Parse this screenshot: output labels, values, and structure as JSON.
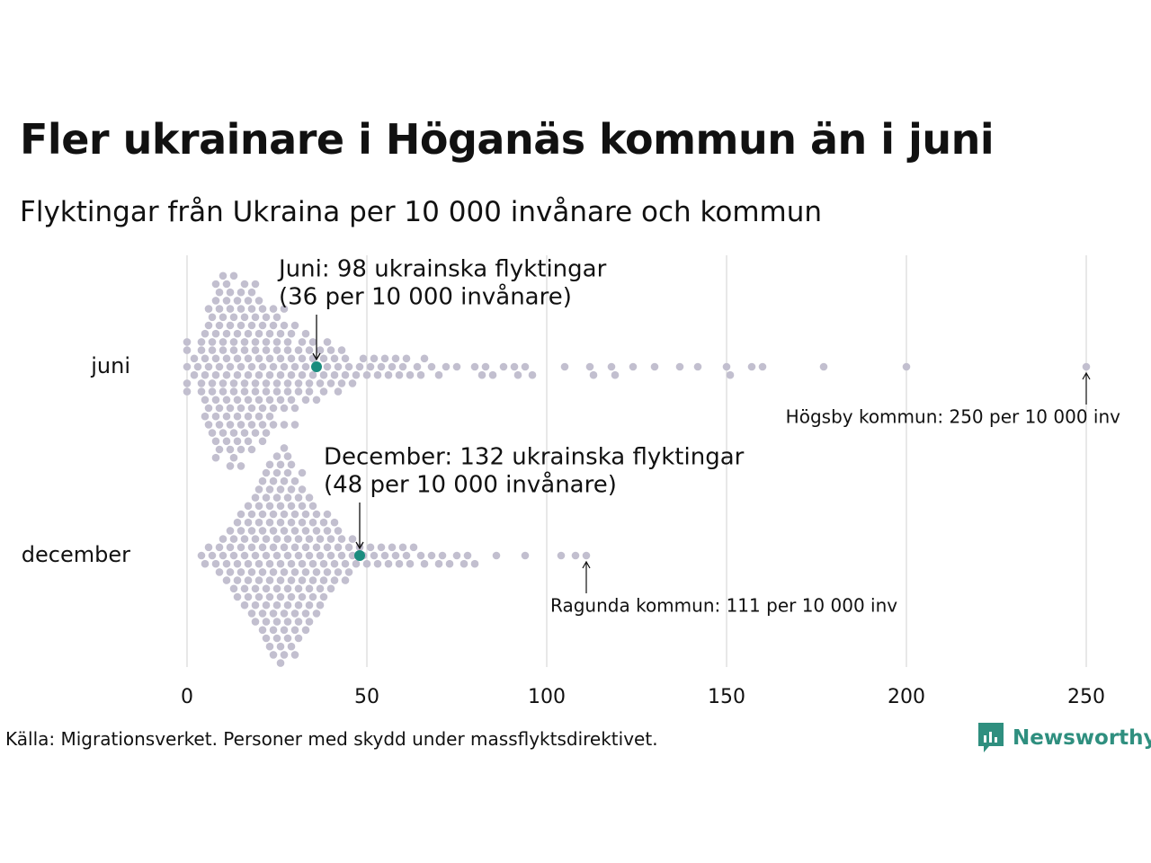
{
  "title": "Fler ukrainare i Höganäs kommun än i juni",
  "subtitle": "Flyktingar från Ukraina per 10 000 invånare och kommun",
  "source": "Källa: Migrationsverket. Personer med skydd under massflyktsdirektivet.",
  "brand": {
    "name": "Newsworthy",
    "color": "#2f8f7f"
  },
  "colors": {
    "dot": "#c2bfcf",
    "highlight": "#1a8c7e",
    "grid": "#d9d9d9",
    "text": "#111111"
  },
  "chart_data": {
    "type": "scatter",
    "subtype": "beeswarm",
    "title": "Fler ukrainare i Höganäs kommun än i juni",
    "subtitle": "Flyktingar från Ukraina per 10 000 invånare och kommun",
    "xlabel": "",
    "ylabel": "",
    "xlim": [
      0,
      250
    ],
    "xticks": [
      "0",
      "50",
      "100",
      "150",
      "200",
      "250"
    ],
    "xtick_values": [
      0,
      50,
      100,
      150,
      200,
      250
    ],
    "grid": true,
    "categories": [
      "juni",
      "december"
    ],
    "series": [
      {
        "name": "juni",
        "highlight": {
          "value": 36,
          "label_line1": "Juni:  98 ukrainska flyktingar",
          "label_line2": "(36 per 10 000 invånare)"
        },
        "max_annotation": {
          "value": 250,
          "label": "Högsby kommun: 250 per 10 000 inv"
        },
        "values": [
          0,
          0,
          0,
          0,
          0,
          2,
          2,
          3,
          4,
          4,
          4,
          4,
          5,
          5,
          5,
          5,
          5,
          6,
          6,
          6,
          6,
          6,
          7,
          7,
          7,
          7,
          7,
          7,
          8,
          8,
          8,
          8,
          8,
          8,
          8,
          8,
          8,
          9,
          9,
          9,
          9,
          9,
          9,
          9,
          10,
          10,
          10,
          10,
          10,
          10,
          10,
          11,
          11,
          11,
          11,
          11,
          11,
          11,
          11,
          12,
          12,
          12,
          12,
          12,
          12,
          12,
          12,
          13,
          13,
          13,
          13,
          13,
          13,
          13,
          13,
          14,
          14,
          14,
          14,
          14,
          14,
          14,
          15,
          15,
          15,
          15,
          15,
          15,
          15,
          15,
          16,
          16,
          16,
          16,
          16,
          16,
          16,
          17,
          17,
          17,
          17,
          17,
          17,
          17,
          18,
          18,
          18,
          18,
          18,
          18,
          18,
          19,
          19,
          19,
          19,
          19,
          19,
          19,
          20,
          20,
          20,
          20,
          20,
          20,
          21,
          21,
          21,
          21,
          21,
          21,
          22,
          22,
          22,
          22,
          22,
          22,
          23,
          23,
          23,
          23,
          23,
          24,
          24,
          24,
          24,
          24,
          25,
          25,
          25,
          25,
          25,
          26,
          26,
          26,
          26,
          27,
          27,
          27,
          27,
          27,
          28,
          28,
          28,
          28,
          29,
          29,
          29,
          29,
          30,
          30,
          30,
          30,
          31,
          31,
          31,
          32,
          32,
          32,
          33,
          33,
          33,
          34,
          34,
          34,
          35,
          35,
          35,
          36,
          36,
          37,
          37,
          38,
          38,
          38,
          39,
          39,
          40,
          40,
          41,
          41,
          42,
          42,
          43,
          43,
          44,
          44,
          45,
          46,
          47,
          48,
          49,
          50,
          51,
          52,
          53,
          54,
          55,
          56,
          57,
          58,
          59,
          60,
          61,
          62,
          64,
          65,
          66,
          68,
          70,
          72,
          75,
          80,
          82,
          83,
          85,
          88,
          91,
          92,
          94,
          96,
          105,
          112,
          113,
          118,
          119,
          124,
          130,
          137,
          142,
          150,
          151,
          157,
          160,
          177,
          200,
          250
        ]
      },
      {
        "name": "december",
        "highlight": {
          "value": 48,
          "label_line1": "December: 132 ukrainska flyktingar",
          "label_line2": "(48 per 10 000 invånare)"
        },
        "max_annotation": {
          "value": 111,
          "label": "Ragunda kommun: 111 per 10 000 inv"
        },
        "values": [
          4,
          5,
          6,
          7,
          8,
          9,
          9,
          10,
          10,
          11,
          11,
          12,
          12,
          12,
          13,
          13,
          13,
          14,
          14,
          14,
          14,
          15,
          15,
          15,
          15,
          16,
          16,
          16,
          16,
          17,
          17,
          17,
          17,
          17,
          18,
          18,
          18,
          18,
          18,
          19,
          19,
          19,
          19,
          19,
          19,
          20,
          20,
          20,
          20,
          20,
          20,
          21,
          21,
          21,
          21,
          21,
          21,
          21,
          22,
          22,
          22,
          22,
          22,
          22,
          22,
          22,
          23,
          23,
          23,
          23,
          23,
          23,
          23,
          23,
          24,
          24,
          24,
          24,
          24,
          24,
          24,
          24,
          25,
          25,
          25,
          25,
          25,
          25,
          25,
          25,
          25,
          26,
          26,
          26,
          26,
          26,
          26,
          26,
          26,
          26,
          27,
          27,
          27,
          27,
          27,
          27,
          27,
          27,
          27,
          28,
          28,
          28,
          28,
          28,
          28,
          28,
          28,
          28,
          29,
          29,
          29,
          29,
          29,
          29,
          29,
          29,
          30,
          30,
          30,
          30,
          30,
          30,
          30,
          30,
          31,
          31,
          31,
          31,
          31,
          31,
          31,
          32,
          32,
          32,
          32,
          32,
          32,
          32,
          33,
          33,
          33,
          33,
          33,
          33,
          34,
          34,
          34,
          34,
          34,
          34,
          35,
          35,
          35,
          35,
          35,
          36,
          36,
          36,
          36,
          36,
          37,
          37,
          37,
          37,
          38,
          38,
          38,
          38,
          39,
          39,
          39,
          39,
          40,
          40,
          40,
          41,
          41,
          41,
          42,
          42,
          42,
          43,
          43,
          44,
          44,
          45,
          45,
          46,
          46,
          47,
          48,
          49,
          50,
          51,
          52,
          53,
          54,
          55,
          56,
          57,
          58,
          59,
          60,
          61,
          62,
          63,
          65,
          66,
          68,
          70,
          71,
          73,
          75,
          77,
          78,
          80,
          86,
          94,
          104,
          108,
          111
        ]
      }
    ]
  }
}
